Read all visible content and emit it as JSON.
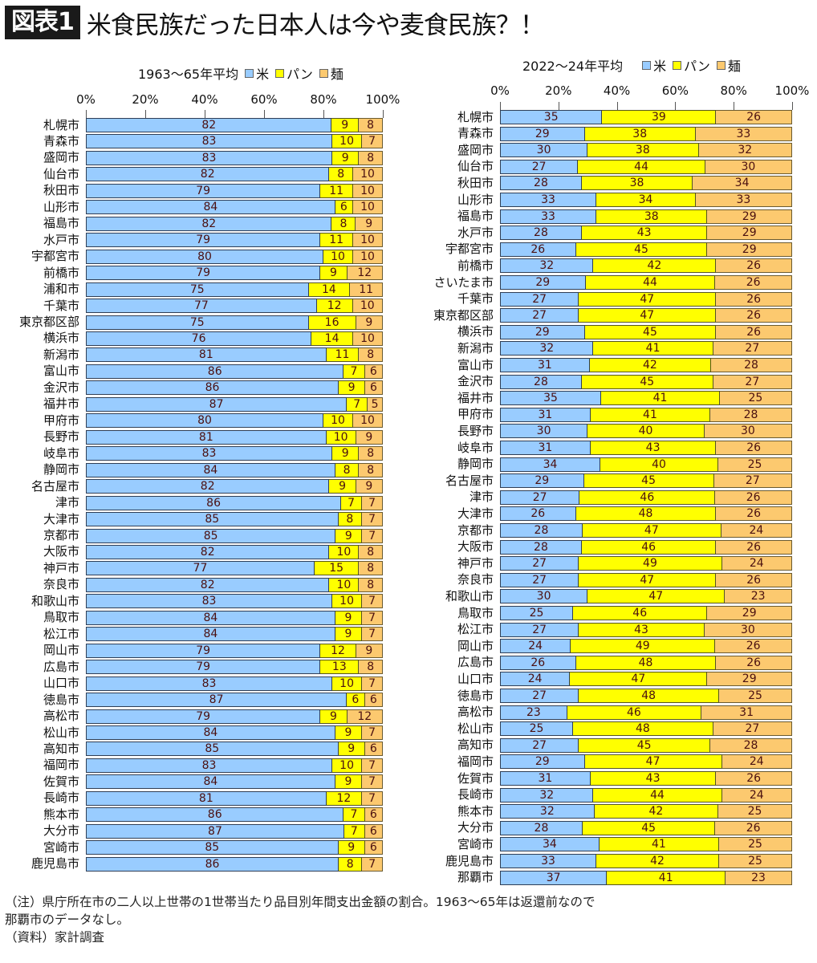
{
  "header": {
    "badge": "図表1",
    "title": "米食民族だった日本人は今や麦食民族？！"
  },
  "legend": {
    "items": [
      {
        "label": "米",
        "color": "#99ccff"
      },
      {
        "label": "パン",
        "color": "#ffff00"
      },
      {
        "label": "麺",
        "color": "#fcc96f"
      }
    ]
  },
  "left_chart": {
    "title": "1963〜65年平均"
  },
  "right_chart": {
    "title": "2022〜24年平均"
  },
  "notes": {
    "line1": "（注）県庁所在市の二人以上世帯の1世帯当たり品目別年間支出金額の割合。1963〜65年は返還前なので",
    "line2": "那覇市のデータなし。",
    "line3": "（資料）家計調査"
  },
  "chart_data": [
    {
      "type": "bar",
      "orientation": "horizontal",
      "stacked": "percent",
      "title": "1963〜65年平均",
      "xlabel": "",
      "ylabel": "",
      "xlim": [
        0,
        100
      ],
      "x_ticks": [
        "0%",
        "20%",
        "40%",
        "60%",
        "80%",
        "100%"
      ],
      "legend": [
        "米",
        "パン",
        "麺"
      ],
      "legend_position": "top",
      "grid": false,
      "categories": [
        "札幌市",
        "青森市",
        "盛岡市",
        "仙台市",
        "秋田市",
        "山形市",
        "福島市",
        "水戸市",
        "宇都宮市",
        "前橋市",
        "浦和市",
        "千葉市",
        "東京都区部",
        "横浜市",
        "新潟市",
        "富山市",
        "金沢市",
        "福井市",
        "甲府市",
        "長野市",
        "岐阜市",
        "静岡市",
        "名古屋市",
        "津市",
        "大津市",
        "京都市",
        "大阪市",
        "神戸市",
        "奈良市",
        "和歌山市",
        "鳥取市",
        "松江市",
        "岡山市",
        "広島市",
        "山口市",
        "徳島市",
        "高松市",
        "松山市",
        "高知市",
        "福岡市",
        "佐賀市",
        "長崎市",
        "熊本市",
        "大分市",
        "宮崎市",
        "鹿児島市"
      ],
      "series": [
        {
          "name": "米",
          "color": "#99ccff",
          "values": [
            82,
            83,
            83,
            82,
            79,
            84,
            82,
            79,
            80,
            79,
            75,
            77,
            75,
            76,
            81,
            86,
            86,
            87,
            80,
            81,
            83,
            84,
            82,
            86,
            85,
            85,
            82,
            77,
            82,
            83,
            84,
            84,
            79,
            79,
            83,
            87,
            79,
            84,
            85,
            83,
            84,
            81,
            86,
            87,
            85,
            86
          ]
        },
        {
          "name": "パン",
          "color": "#ffff00",
          "values": [
            9,
            10,
            9,
            8,
            11,
            6,
            8,
            11,
            10,
            9,
            14,
            12,
            16,
            14,
            11,
            7,
            9,
            7,
            10,
            10,
            9,
            8,
            9,
            7,
            8,
            9,
            10,
            15,
            10,
            10,
            9,
            9,
            12,
            13,
            10,
            6,
            9,
            9,
            9,
            10,
            9,
            12,
            7,
            7,
            9,
            8
          ]
        },
        {
          "name": "麺",
          "color": "#fcc96f",
          "values": [
            8,
            7,
            8,
            10,
            10,
            10,
            9,
            10,
            10,
            12,
            11,
            10,
            9,
            10,
            8,
            6,
            6,
            5,
            10,
            9,
            8,
            8,
            9,
            7,
            7,
            7,
            8,
            8,
            8,
            7,
            7,
            7,
            9,
            8,
            7,
            6,
            12,
            7,
            6,
            7,
            7,
            7,
            6,
            6,
            6,
            7
          ]
        }
      ]
    },
    {
      "type": "bar",
      "orientation": "horizontal",
      "stacked": "percent",
      "title": "2022〜24年平均",
      "xlabel": "",
      "ylabel": "",
      "xlim": [
        0,
        100
      ],
      "x_ticks": [
        "0%",
        "20%",
        "40%",
        "60%",
        "80%",
        "100%"
      ],
      "legend": [
        "米",
        "パン",
        "麺"
      ],
      "legend_position": "top",
      "grid": false,
      "categories": [
        "札幌市",
        "青森市",
        "盛岡市",
        "仙台市",
        "秋田市",
        "山形市",
        "福島市",
        "水戸市",
        "宇都宮市",
        "前橋市",
        "さいたま市",
        "千葉市",
        "東京都区部",
        "横浜市",
        "新潟市",
        "富山市",
        "金沢市",
        "福井市",
        "甲府市",
        "長野市",
        "岐阜市",
        "静岡市",
        "名古屋市",
        "津市",
        "大津市",
        "京都市",
        "大阪市",
        "神戸市",
        "奈良市",
        "和歌山市",
        "鳥取市",
        "松江市",
        "岡山市",
        "広島市",
        "山口市",
        "徳島市",
        "高松市",
        "松山市",
        "高知市",
        "福岡市",
        "佐賀市",
        "長崎市",
        "熊本市",
        "大分市",
        "宮崎市",
        "鹿児島市",
        "那覇市"
      ],
      "series": [
        {
          "name": "米",
          "color": "#99ccff",
          "values": [
            35,
            29,
            30,
            27,
            28,
            33,
            33,
            28,
            26,
            32,
            29,
            27,
            27,
            29,
            32,
            31,
            28,
            35,
            31,
            30,
            31,
            34,
            29,
            27,
            26,
            28,
            28,
            27,
            27,
            30,
            25,
            27,
            24,
            26,
            24,
            27,
            23,
            25,
            27,
            29,
            31,
            32,
            32,
            28,
            34,
            33,
            37
          ]
        },
        {
          "name": "パン",
          "color": "#ffff00",
          "values": [
            39,
            38,
            38,
            44,
            38,
            34,
            38,
            43,
            45,
            42,
            44,
            47,
            47,
            45,
            41,
            42,
            45,
            41,
            41,
            40,
            43,
            40,
            45,
            46,
            48,
            47,
            46,
            49,
            47,
            47,
            46,
            43,
            49,
            48,
            47,
            48,
            46,
            48,
            45,
            47,
            43,
            44,
            42,
            45,
            41,
            42,
            41
          ]
        },
        {
          "name": "麺",
          "color": "#fcc96f",
          "values": [
            26,
            33,
            32,
            30,
            34,
            33,
            29,
            29,
            29,
            26,
            26,
            26,
            26,
            26,
            27,
            28,
            27,
            25,
            28,
            30,
            26,
            25,
            27,
            26,
            26,
            24,
            26,
            24,
            26,
            23,
            29,
            30,
            26,
            26,
            29,
            25,
            31,
            27,
            28,
            24,
            26,
            24,
            25,
            26,
            25,
            25,
            23
          ]
        }
      ]
    }
  ]
}
